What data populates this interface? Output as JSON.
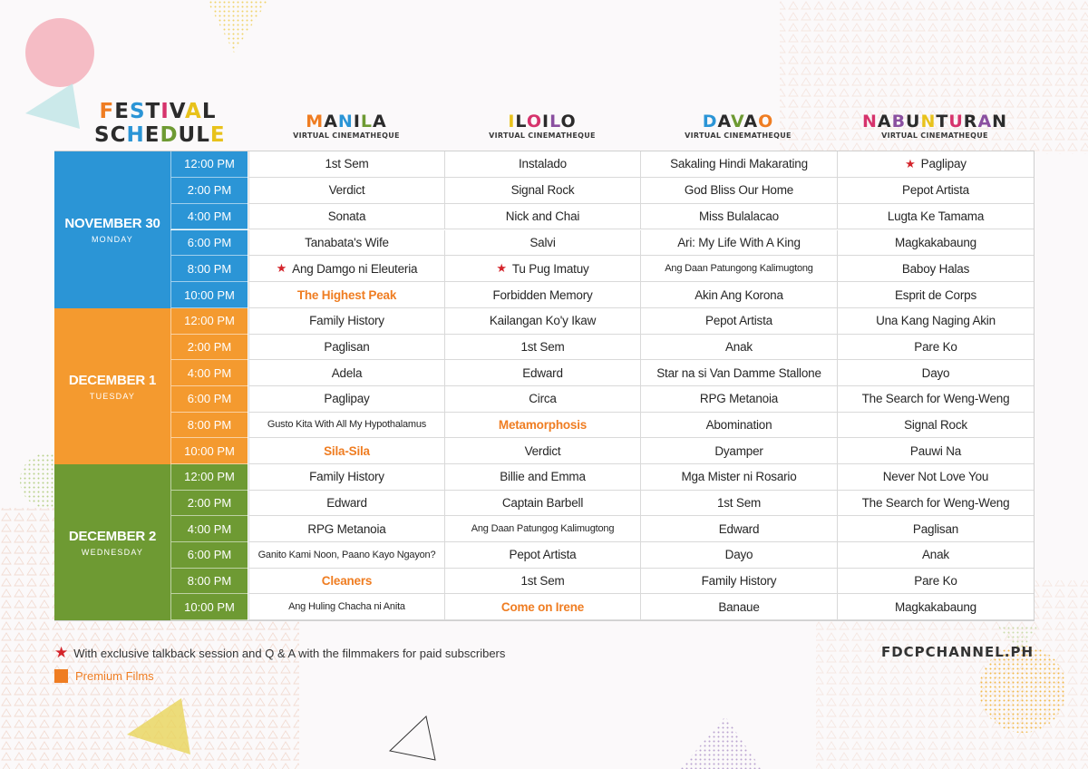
{
  "title": {
    "line1": [
      "F",
      "E",
      "S",
      "T",
      "I",
      "V",
      "A",
      "L"
    ],
    "line2": [
      "S",
      "C",
      "H",
      "E",
      "D",
      "U",
      "L",
      "E"
    ]
  },
  "venues": [
    {
      "name": [
        "M",
        "A",
        "N",
        "I",
        "L",
        "A"
      ],
      "subtitle": "VIRTUAL CINEMATHEQUE"
    },
    {
      "name": [
        "I",
        "L",
        "O",
        "I",
        "L",
        "O"
      ],
      "subtitle": "VIRTUAL CINEMATHEQUE"
    },
    {
      "name": [
        "D",
        "A",
        "V",
        "A",
        "O"
      ],
      "subtitle": "VIRTUAL CINEMATHEQUE"
    },
    {
      "name": [
        "N",
        "A",
        "B",
        "U",
        "N",
        "T",
        "U",
        "R",
        "A",
        "N"
      ],
      "subtitle": "VIRTUAL CINEMATHEQUE"
    }
  ],
  "colors": {
    "nov30": "#2b95d6",
    "dec1": "#f49a2f",
    "dec2": "#6e9a33",
    "premium": "#ef7d22",
    "star": "#d4242b",
    "letters": [
      "#ef7d22",
      "#e8c21b",
      "#2b95d6",
      "#d6336c",
      "#6e9a33",
      "#8a4fa0",
      "#2b2b2b"
    ]
  },
  "days": [
    {
      "name": "NOVEMBER 30",
      "weekday": "MONDAY",
      "rows": [
        {
          "time": "12:00 PM",
          "films": [
            {
              "t": "1st Sem"
            },
            {
              "t": "Instalado"
            },
            {
              "t": "Sakaling Hindi Makarating"
            },
            {
              "t": "Paglipay",
              "star": true
            }
          ]
        },
        {
          "time": "2:00 PM",
          "films": [
            {
              "t": "Verdict"
            },
            {
              "t": "Signal Rock"
            },
            {
              "t": "God Bliss Our Home"
            },
            {
              "t": "Pepot Artista"
            }
          ]
        },
        {
          "time": "4:00 PM",
          "films": [
            {
              "t": "Sonata"
            },
            {
              "t": "Nick and Chai"
            },
            {
              "t": "Miss Bulalacao"
            },
            {
              "t": "Lugta Ke Tamama"
            }
          ]
        },
        {
          "time": "6:00 PM",
          "films": [
            {
              "t": "Tanabata's Wife"
            },
            {
              "t": "Salvi"
            },
            {
              "t": "Ari: My Life With A King"
            },
            {
              "t": "Magkakabaung"
            }
          ]
        },
        {
          "time": "8:00 PM",
          "films": [
            {
              "t": "Ang Damgo ni Eleuteria",
              "star": true
            },
            {
              "t": "Tu Pug Imatuy",
              "star": true
            },
            {
              "t": "Ang Daan Patungong Kalimugtong",
              "small": true
            },
            {
              "t": "Baboy Halas"
            }
          ]
        },
        {
          "time": "10:00 PM",
          "films": [
            {
              "t": "The Highest Peak",
              "premium": true
            },
            {
              "t": "Forbidden Memory"
            },
            {
              "t": "Akin Ang Korona"
            },
            {
              "t": "Esprit de Corps"
            }
          ]
        }
      ]
    },
    {
      "name": "DECEMBER 1",
      "weekday": "TUESDAY",
      "rows": [
        {
          "time": "12:00 PM",
          "films": [
            {
              "t": "Family History"
            },
            {
              "t": "Kailangan Ko'y Ikaw"
            },
            {
              "t": "Pepot Artista"
            },
            {
              "t": "Una Kang Naging Akin"
            }
          ]
        },
        {
          "time": "2:00 PM",
          "films": [
            {
              "t": "Paglisan"
            },
            {
              "t": "1st Sem"
            },
            {
              "t": "Anak"
            },
            {
              "t": "Pare Ko"
            }
          ]
        },
        {
          "time": "4:00 PM",
          "films": [
            {
              "t": "Adela"
            },
            {
              "t": "Edward"
            },
            {
              "t": "Star na si Van Damme Stallone"
            },
            {
              "t": "Dayo"
            }
          ]
        },
        {
          "time": "6:00 PM",
          "films": [
            {
              "t": "Paglipay"
            },
            {
              "t": "Circa"
            },
            {
              "t": "RPG Metanoia"
            },
            {
              "t": "The Search for Weng-Weng"
            }
          ]
        },
        {
          "time": "8:00 PM",
          "films": [
            {
              "t": "Gusto Kita With All My Hypothalamus",
              "small": true
            },
            {
              "t": "Metamorphosis",
              "premium": true
            },
            {
              "t": "Abomination"
            },
            {
              "t": "Signal Rock"
            }
          ]
        },
        {
          "time": "10:00 PM",
          "films": [
            {
              "t": "Sila-Sila",
              "premium": true
            },
            {
              "t": "Verdict"
            },
            {
              "t": "Dyamper"
            },
            {
              "t": "Pauwi Na"
            }
          ]
        }
      ]
    },
    {
      "name": "DECEMBER 2",
      "weekday": "WEDNESDAY",
      "rows": [
        {
          "time": "12:00 PM",
          "films": [
            {
              "t": "Family History"
            },
            {
              "t": "Billie and Emma"
            },
            {
              "t": "Mga Mister ni Rosario"
            },
            {
              "t": "Never Not Love You"
            }
          ]
        },
        {
          "time": "2:00 PM",
          "films": [
            {
              "t": "Edward"
            },
            {
              "t": "Captain Barbell"
            },
            {
              "t": "1st Sem"
            },
            {
              "t": "The Search for Weng-Weng"
            }
          ]
        },
        {
          "time": "4:00 PM",
          "films": [
            {
              "t": "RPG Metanoia"
            },
            {
              "t": "Ang Daan Patungog Kalimugtong",
              "small": true
            },
            {
              "t": "Edward"
            },
            {
              "t": "Paglisan"
            }
          ]
        },
        {
          "time": "6:00 PM",
          "films": [
            {
              "t": "Ganito Kami Noon, Paano Kayo Ngayon?",
              "small": true
            },
            {
              "t": "Pepot Artista"
            },
            {
              "t": "Dayo"
            },
            {
              "t": "Anak"
            }
          ]
        },
        {
          "time": "8:00 PM",
          "films": [
            {
              "t": "Cleaners",
              "premium": true
            },
            {
              "t": "1st Sem"
            },
            {
              "t": "Family History"
            },
            {
              "t": "Pare Ko"
            }
          ]
        },
        {
          "time": "10:00 PM",
          "films": [
            {
              "t": "Ang Huling Chacha ni Anita",
              "small": true
            },
            {
              "t": "Come on Irene",
              "premium": true
            },
            {
              "t": "Banaue"
            },
            {
              "t": "Magkakabaung"
            }
          ]
        }
      ]
    }
  ],
  "legend": {
    "star_text": "With exclusive talkback session and Q & A with the filmmakers for paid subscribers",
    "premium_text": "Premium Films"
  },
  "website": "FDCPCHANNEL.PH"
}
